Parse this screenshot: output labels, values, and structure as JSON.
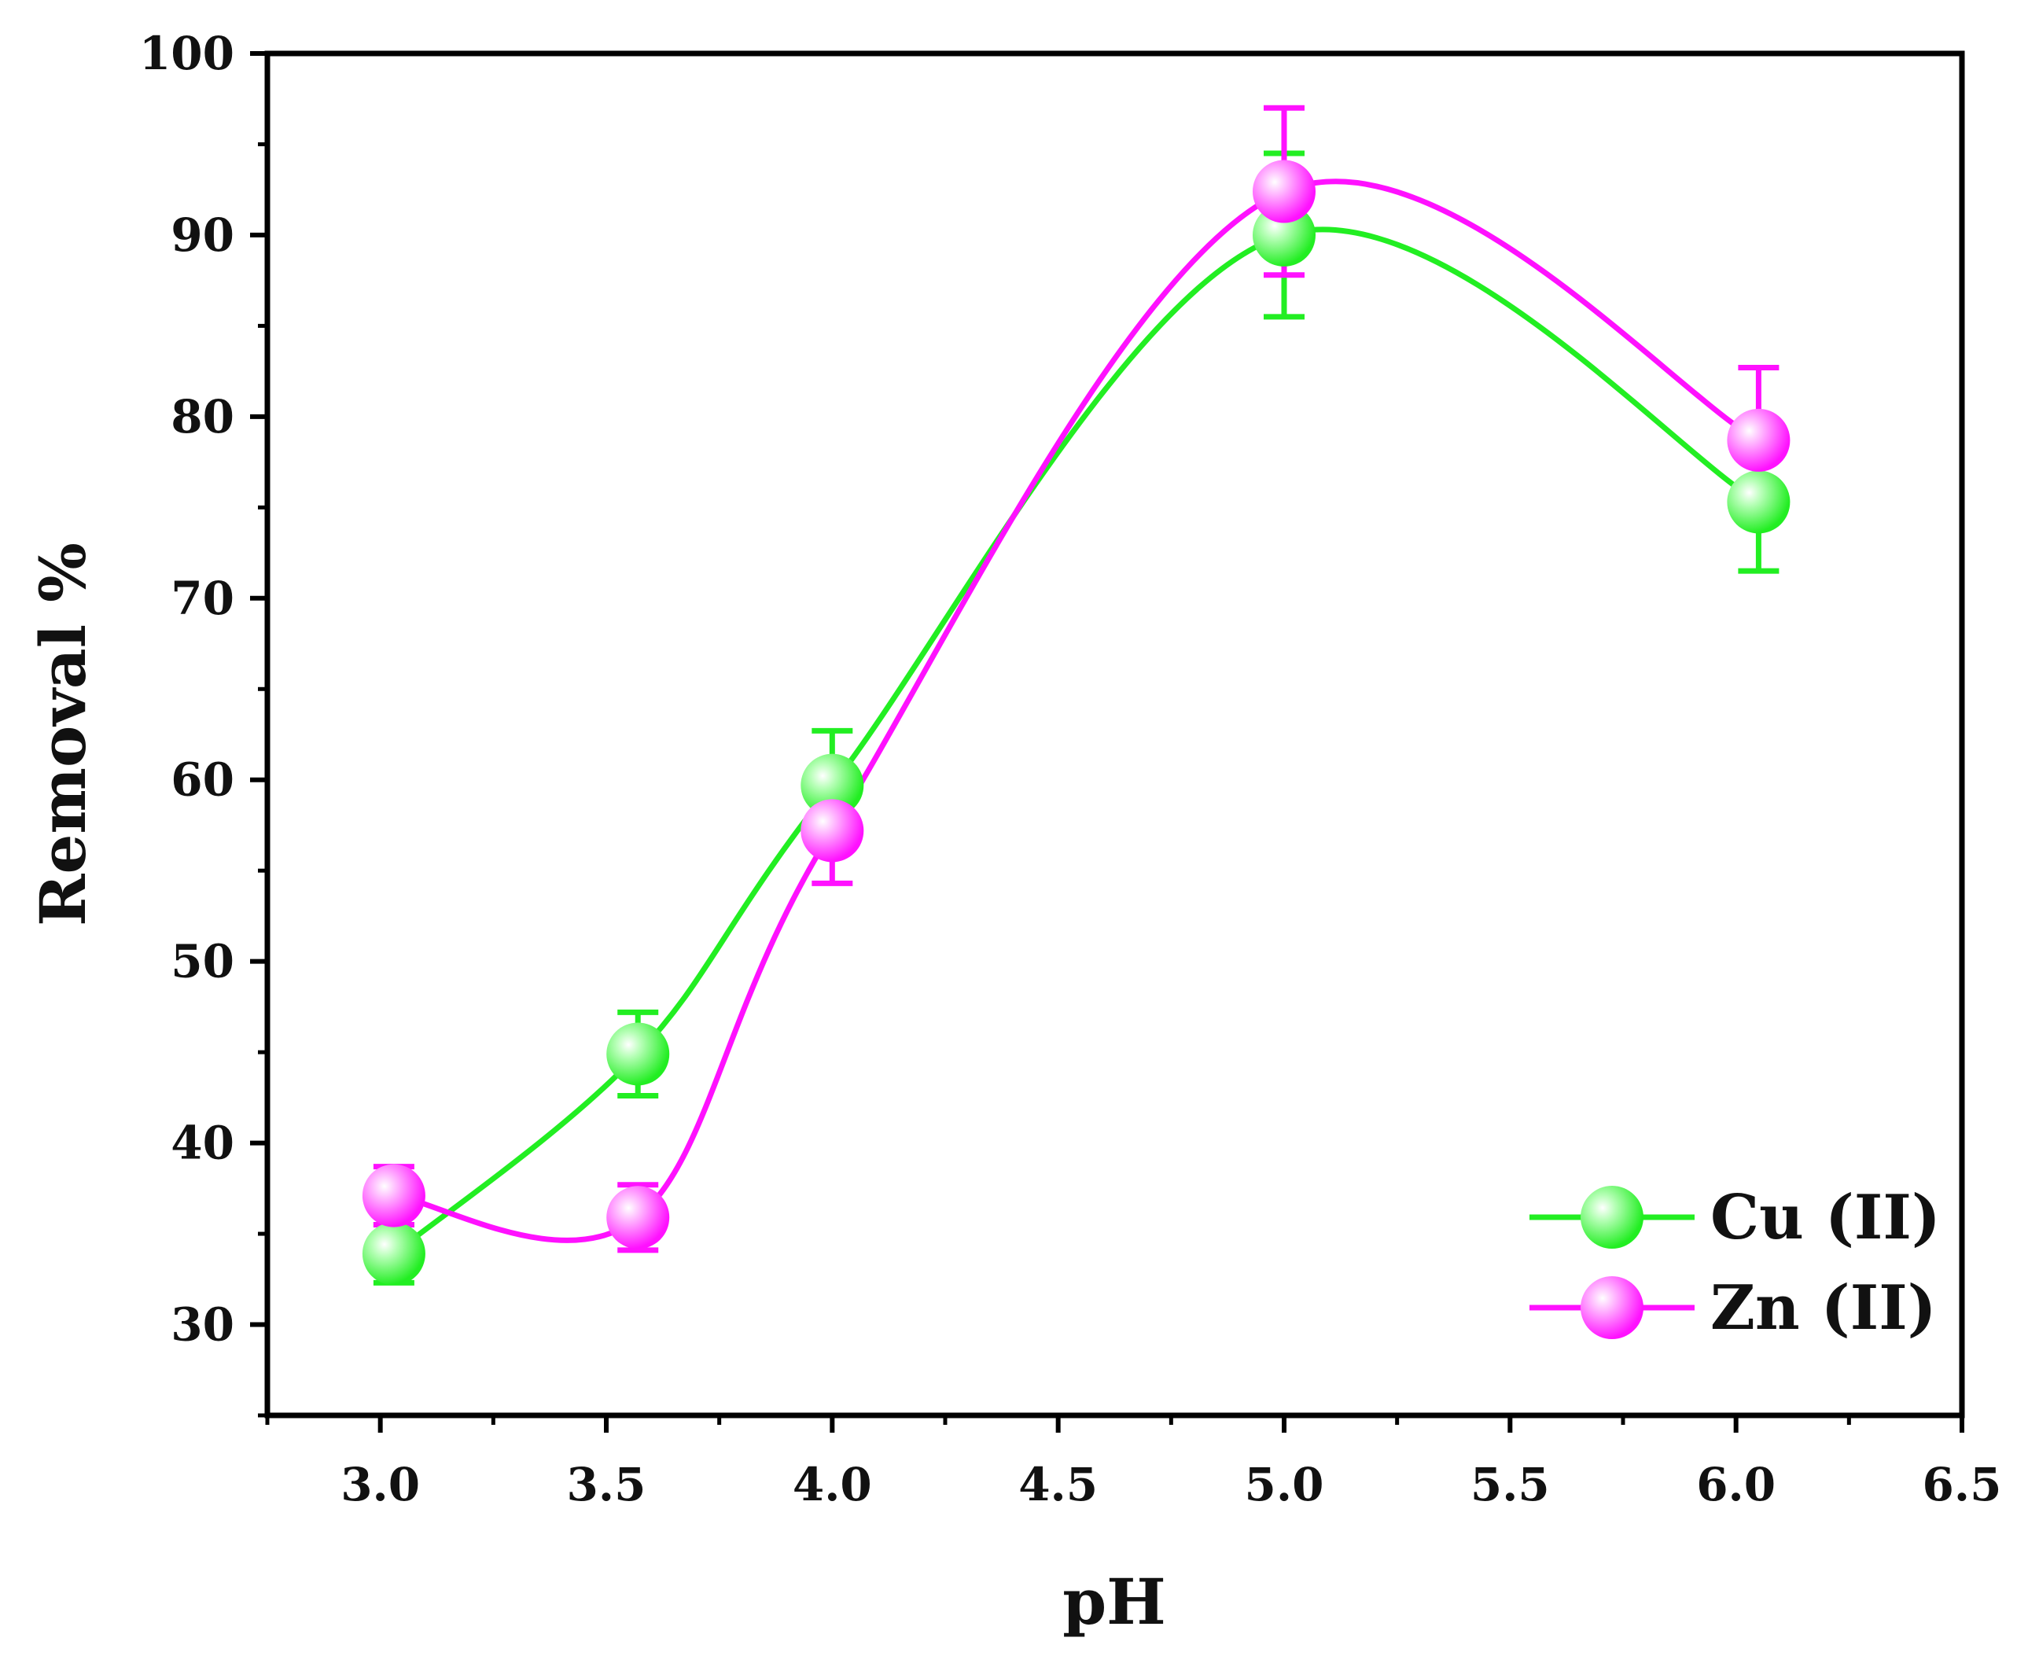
{
  "chart_data": {
    "type": "line",
    "title": "",
    "xlabel": "pH",
    "ylabel": "Removal %",
    "xlim": [
      2.75,
      6.5
    ],
    "ylim": [
      25,
      100
    ],
    "xticks": [
      3.0,
      3.5,
      4.0,
      4.5,
      5.0,
      5.5,
      6.0,
      6.5
    ],
    "xtick_labels": [
      "3.0",
      "3.5",
      "4.0",
      "4.5",
      "5.0",
      "5.5",
      "6.0",
      "6.5"
    ],
    "yticks": [
      30,
      40,
      50,
      60,
      70,
      80,
      90,
      100
    ],
    "ytick_labels": [
      "30",
      "40",
      "50",
      "60",
      "70",
      "80",
      "90",
      "100"
    ],
    "legend_position": "bottom-right",
    "smooth": true,
    "series": [
      {
        "name": "Cu (II)",
        "color": "#22ee22",
        "x": [
          3.03,
          3.57,
          4.0,
          5.0,
          6.05
        ],
        "y": [
          33.9,
          44.9,
          59.7,
          90.0,
          75.3
        ],
        "err": [
          1.6,
          2.3,
          3.0,
          4.5,
          3.8
        ]
      },
      {
        "name": "Zn (II)",
        "color": "#ff11ff",
        "x": [
          3.03,
          3.57,
          4.0,
          5.0,
          6.05
        ],
        "y": [
          37.1,
          35.9,
          57.2,
          92.4,
          78.7
        ],
        "err": [
          1.6,
          1.8,
          2.9,
          4.6,
          4.0
        ]
      }
    ]
  }
}
